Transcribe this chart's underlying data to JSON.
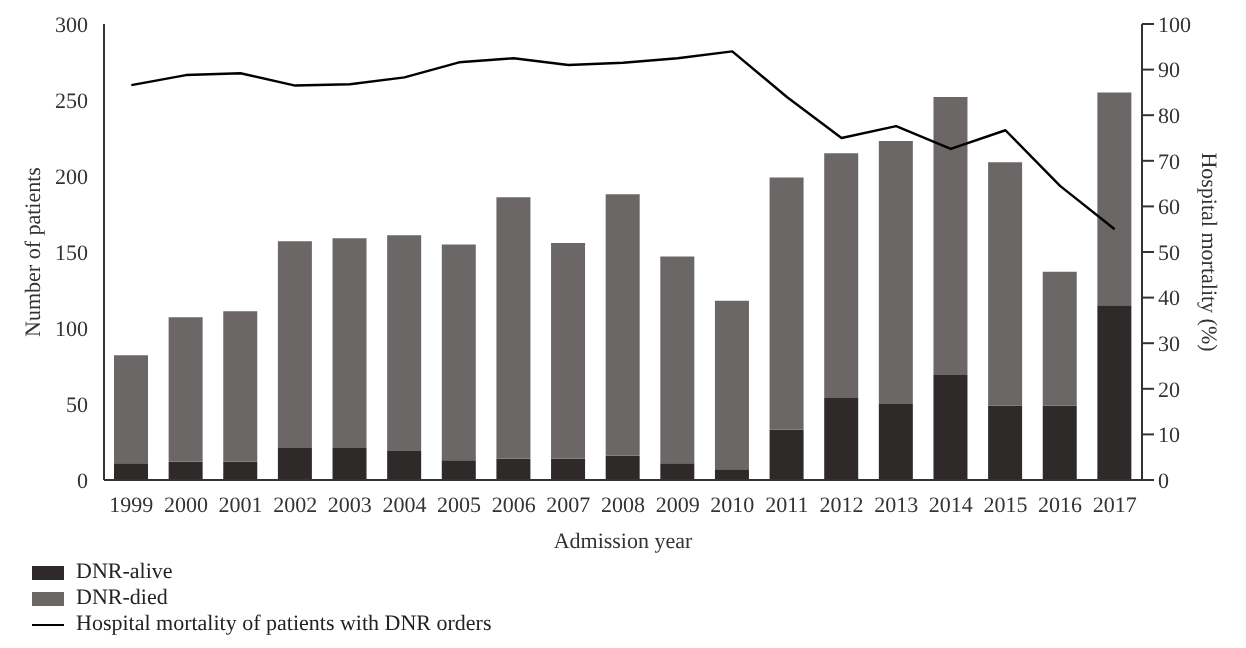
{
  "chart_data": {
    "type": "bar",
    "stacked": true,
    "xlabel": "Admission year",
    "ylabel": "Number of patients",
    "y2label": "Hospital mortality (%)",
    "categories": [
      "1999",
      "2000",
      "2001",
      "2002",
      "2003",
      "2004",
      "2005",
      "2006",
      "2007",
      "2008",
      "2009",
      "2010",
      "2011",
      "2012",
      "2013",
      "2014",
      "2015",
      "2016",
      "2017"
    ],
    "series": [
      {
        "name": "DNR-alive",
        "color": "#2e2a29",
        "values": [
          11,
          12,
          12,
          21,
          21,
          19,
          13,
          14,
          14,
          16,
          11,
          7,
          33,
          54,
          50,
          69,
          49,
          49,
          115
        ]
      },
      {
        "name": "DNR-died",
        "color": "#6b6767",
        "values": [
          71,
          95,
          99,
          136,
          138,
          142,
          142,
          172,
          142,
          172,
          136,
          111,
          166,
          161,
          173,
          183,
          160,
          88,
          140
        ]
      },
      {
        "name": "Hospital mortality of patients with DNR orders",
        "type": "line",
        "axis": "y2",
        "color": "#000000",
        "values": [
          86.6,
          88.8,
          89.2,
          86.5,
          86.8,
          88.3,
          91.6,
          92.5,
          91,
          91.5,
          92.5,
          94,
          84,
          75,
          77.6,
          72.6,
          76.7,
          64.5,
          55
        ]
      }
    ],
    "ylim": [
      0,
      300
    ],
    "yticks": [
      0,
      50,
      100,
      150,
      200,
      250,
      300
    ],
    "y2lim": [
      0,
      100
    ],
    "y2ticks": [
      0,
      10,
      20,
      30,
      40,
      50,
      60,
      70,
      80,
      90,
      100
    ],
    "grid": false,
    "legend": "bottom left",
    "marker": "none",
    "line_style": "solid"
  }
}
